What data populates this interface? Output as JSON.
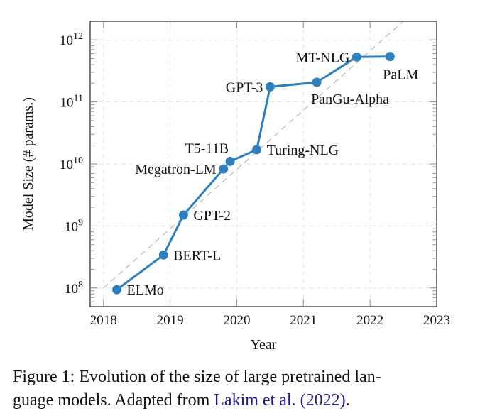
{
  "chart_data": {
    "type": "line",
    "title": "",
    "xlabel": "Year",
    "ylabel": "Model Size (# params.)",
    "xlim": [
      2017.8,
      2023
    ],
    "ylim_log10": [
      7.7,
      12.3
    ],
    "yscale": "log",
    "grid": true,
    "x_ticks": [
      2018,
      2019,
      2020,
      2021,
      2022,
      2023
    ],
    "x_tick_labels": [
      "2018",
      "2019",
      "2020",
      "2021",
      "2022",
      "2023"
    ],
    "y_ticks_exp": [
      8,
      9,
      10,
      11,
      12
    ],
    "y_tick_labels": [
      {
        "base": "10",
        "exp": "8"
      },
      {
        "base": "10",
        "exp": "9"
      },
      {
        "base": "10",
        "exp": "10"
      },
      {
        "base": "10",
        "exp": "11"
      },
      {
        "base": "10",
        "exp": "12"
      }
    ],
    "series": [
      {
        "name": "Model size",
        "color": "#2f7fbd",
        "points": [
          {
            "label": "ELMo",
            "x": 2018.2,
            "y": 94000000,
            "label_pos": "right"
          },
          {
            "label": "BERT-L",
            "x": 2018.9,
            "y": 340000000,
            "label_pos": "right"
          },
          {
            "label": "GPT-2",
            "x": 2019.2,
            "y": 1500000000,
            "label_pos": "right"
          },
          {
            "label": "Megatron-LM",
            "x": 2019.8,
            "y": 8300000000,
            "label_pos": "left"
          },
          {
            "label": "T5-11B",
            "x": 2019.9,
            "y": 11000000000,
            "label_pos": "above-left"
          },
          {
            "label": "Turing-NLG",
            "x": 2020.3,
            "y": 17000000000,
            "label_pos": "right"
          },
          {
            "label": "GPT-3",
            "x": 2020.5,
            "y": 175000000000,
            "label_pos": "left"
          },
          {
            "label": "PanGu-Alpha",
            "x": 2021.2,
            "y": 207000000000,
            "label_pos": "below-right"
          },
          {
            "label": "MT-NLG",
            "x": 2021.8,
            "y": 530000000000,
            "label_pos": "left"
          },
          {
            "label": "PaLM",
            "x": 2022.3,
            "y": 540000000000,
            "label_pos": "below"
          }
        ]
      }
    ],
    "trend_line": {
      "style": "dashed",
      "color": "#aaaaaa",
      "from": {
        "x": 2018,
        "y": 100000000
      },
      "to": {
        "x": 2022.5,
        "y": 2000000000000
      }
    }
  },
  "caption": {
    "text": "Figure 1: Evolution of the size of large pretrained lan-guage models. Adapted from ",
    "line1": "Figure 1: Evolution of the size of large pretrained lan-",
    "line2_prefix": "guage models. Adapted from ",
    "citation_author": "Lakim et al.",
    "citation_year": "2022",
    "suffix": "."
  }
}
